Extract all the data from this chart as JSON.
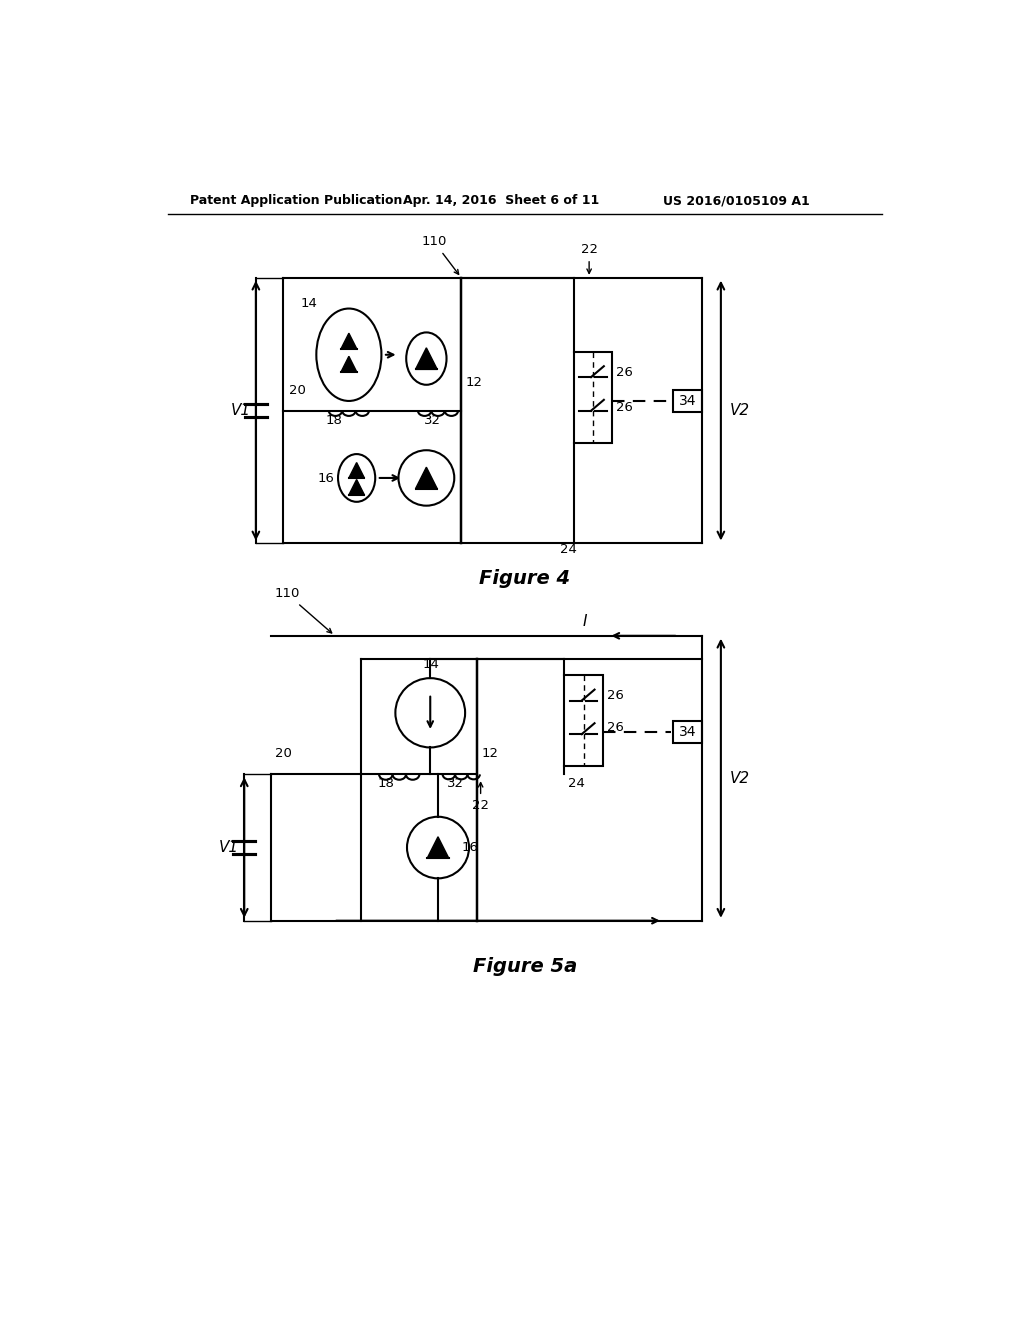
{
  "bg_color": "#ffffff",
  "line_color": "#000000",
  "header_text": "Patent Application Publication",
  "header_date": "Apr. 14, 2016  Sheet 6 of 11",
  "header_patent": "US 2016/0105109 A1",
  "fig4_title": "Figure 4",
  "fig5a_title": "Figure 5a"
}
